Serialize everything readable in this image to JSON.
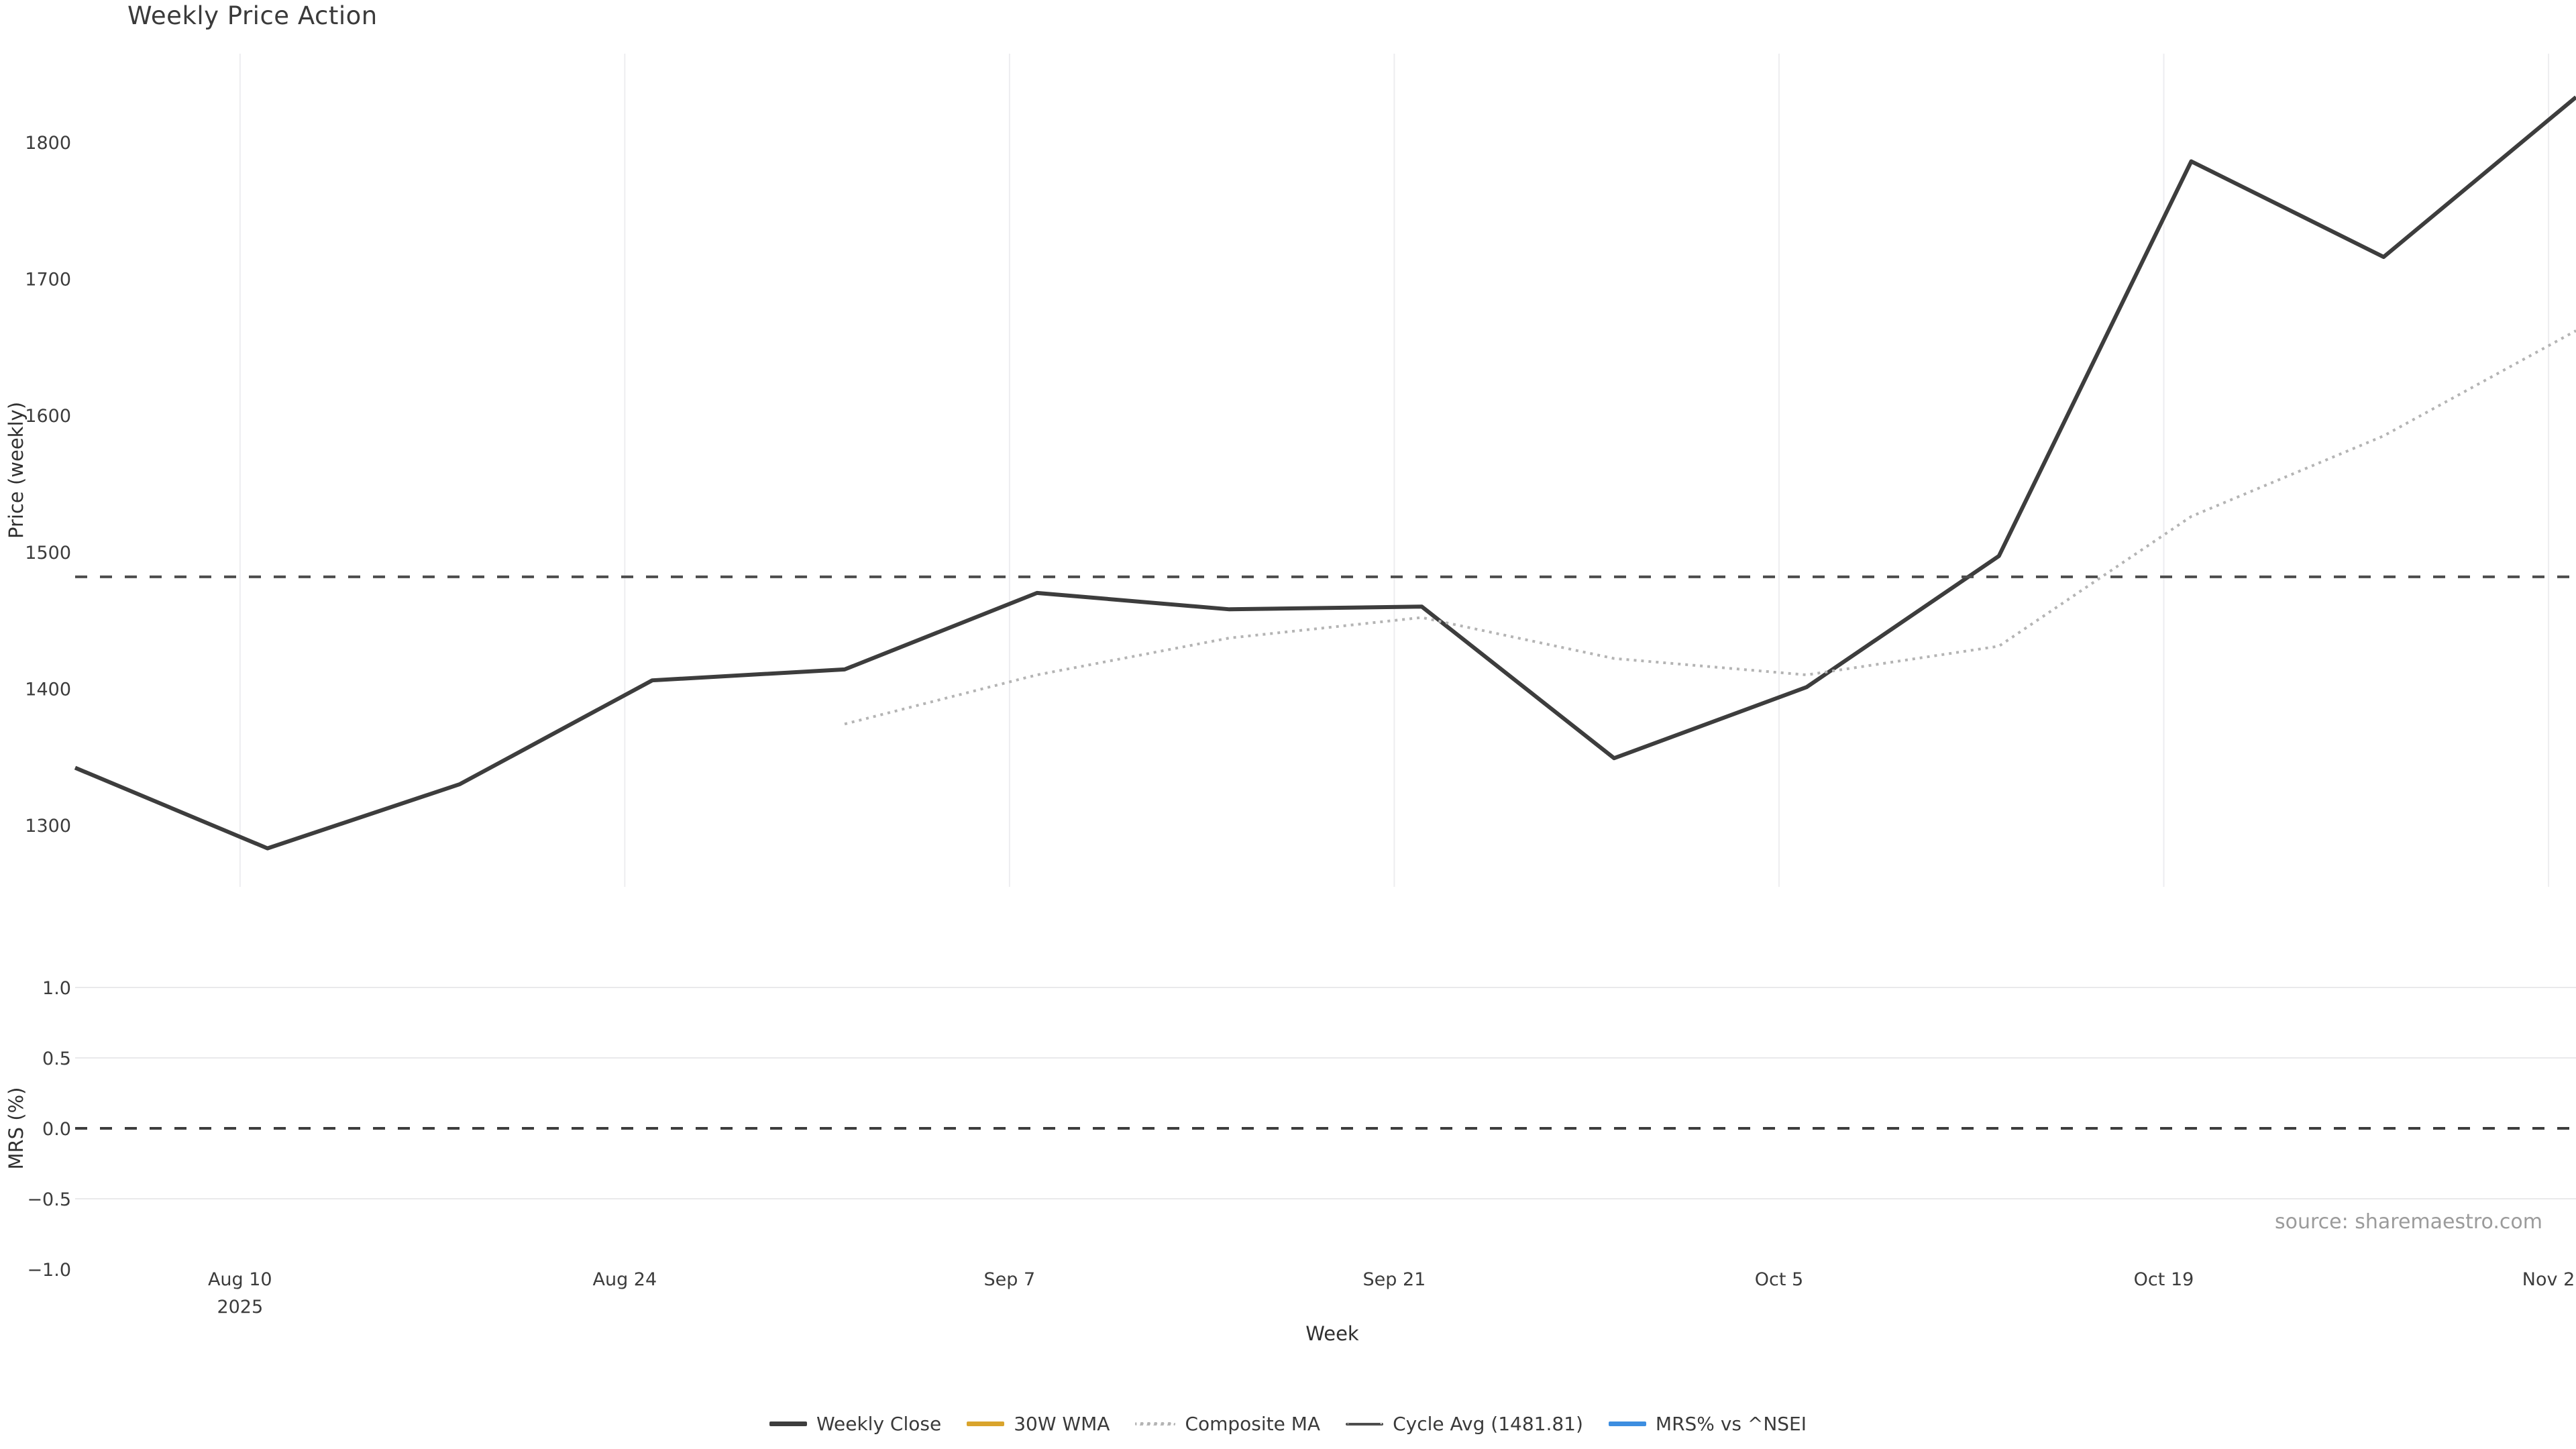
{
  "title": "Weekly Price Action",
  "source_note": "source: sharemaestro.com",
  "chart_data": {
    "type": "line",
    "title": "Weekly Price Action",
    "x_axis": {
      "label": "Week",
      "year_sublabel": "2025",
      "tick_labels": [
        "Aug 10",
        "Aug 24",
        "Sep 7",
        "Sep 21",
        "Oct 5",
        "Oct 19",
        "Nov 2"
      ],
      "categories": [
        "Aug 4",
        "Aug 11",
        "Aug 18",
        "Aug 25",
        "Sep 1",
        "Sep 8",
        "Sep 15",
        "Sep 22",
        "Sep 29",
        "Oct 6",
        "Oct 13",
        "Oct 20",
        "Oct 27",
        "Nov 3"
      ]
    },
    "price_panel": {
      "y_label": "Price (weekly)",
      "y_ticks": [
        1300,
        1400,
        1500,
        1600,
        1700,
        1800
      ],
      "y_range": [
        1255,
        1865
      ],
      "grid": "vertical-only",
      "series": [
        {
          "name": "Weekly Close",
          "type": "line",
          "style": "solid",
          "color": "#3d3d3d",
          "values": [
            1342,
            1283,
            1330,
            1406,
            1414,
            1470,
            1458,
            1460,
            1349,
            1401,
            1497,
            1786,
            1716,
            1833
          ]
        },
        {
          "name": "30W WMA",
          "type": "line",
          "style": "solid",
          "color": "#d9a42c",
          "values": []
        },
        {
          "name": "Composite MA",
          "type": "line",
          "style": "dotted",
          "color": "#b4b4b4",
          "values": [
            null,
            null,
            null,
            null,
            1374,
            1410,
            1437,
            1452,
            1422,
            1410,
            1431,
            1526,
            1585,
            1662
          ]
        },
        {
          "name": "Cycle Avg (1481.81)",
          "type": "hline",
          "style": "dashed",
          "color": "#4d4d4d",
          "value": 1481.81
        }
      ]
    },
    "mrs_panel": {
      "y_label": "MRS (%)",
      "y_ticks": [
        "1.0",
        "0.5",
        "0.0",
        "−0.5",
        "−1.0"
      ],
      "y_tick_values": [
        1,
        0.5,
        0,
        -0.5,
        -1
      ],
      "y_range": [
        -1,
        1
      ],
      "grid": "horizontal-only",
      "zero_line": {
        "style": "dashed",
        "color": "#3d3d3d",
        "value": 0
      },
      "series": [
        {
          "name": "MRS% vs ^NSEI",
          "type": "line",
          "style": "solid",
          "color": "#3d8ee0",
          "values": []
        }
      ]
    },
    "grid_color": "#ededf0",
    "legend_position": "bottom-center"
  },
  "legend": {
    "items": [
      {
        "label": "Weekly Close",
        "swatch": "solid",
        "color": "#3d3d3d"
      },
      {
        "label": "30W WMA",
        "swatch": "solid",
        "color": "#d9a42c"
      },
      {
        "label": "Composite MA",
        "swatch": "dotted",
        "color": "#b4b4b4"
      },
      {
        "label": "Cycle Avg (1481.81)",
        "swatch": "dashed",
        "color": "#4d4d4d"
      },
      {
        "label": "MRS% vs ^NSEI",
        "swatch": "solid",
        "color": "#3d8ee0"
      }
    ]
  }
}
